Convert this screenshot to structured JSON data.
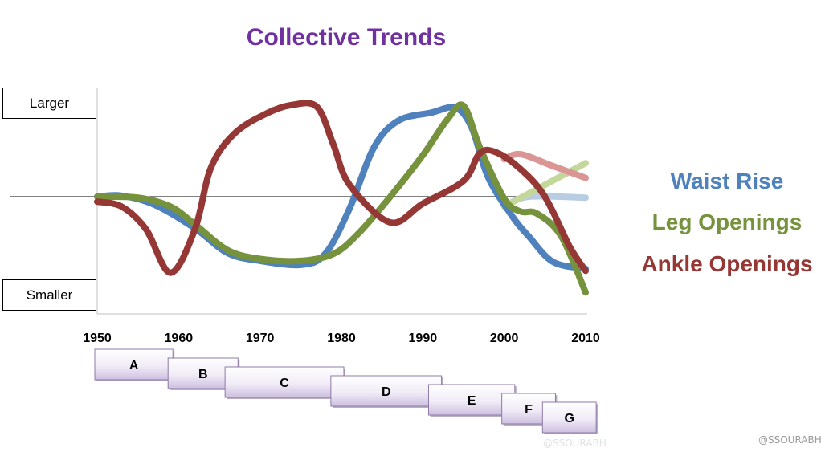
{
  "chart_data": {
    "type": "line",
    "title": "Collective Trends",
    "y_axis": {
      "top_label": "Larger",
      "bottom_label": "Smaller",
      "range": [
        -1,
        1
      ]
    },
    "x_axis": {
      "ticks": [
        "1950",
        "1960",
        "1970",
        "1980",
        "1990",
        "2000",
        "2010"
      ],
      "range": [
        1950,
        2010
      ]
    },
    "grid": false,
    "legend_position": "right",
    "series": [
      {
        "name": "Waist Rise",
        "color": "#4f81bd",
        "values": [
          [
            1950,
            0
          ],
          [
            1953,
            0.01
          ],
          [
            1957,
            -0.08
          ],
          [
            1962,
            -0.32
          ],
          [
            1966,
            -0.57
          ],
          [
            1970,
            -0.65
          ],
          [
            1975,
            -0.69
          ],
          [
            1978,
            -0.58
          ],
          [
            1981,
            -0.12
          ],
          [
            1984,
            0.5
          ],
          [
            1987,
            0.77
          ],
          [
            1991,
            0.85
          ],
          [
            1994,
            0.9
          ],
          [
            1996,
            0.7
          ],
          [
            1998,
            0.2
          ],
          [
            2001,
            -0.2
          ],
          [
            2003,
            -0.4
          ],
          [
            2006,
            -0.66
          ],
          [
            2010,
            -0.73
          ]
        ]
      },
      {
        "name": "Leg Openings",
        "color": "#76923c",
        "values": [
          [
            1950,
            0
          ],
          [
            1955,
            -0.01
          ],
          [
            1959,
            -0.1
          ],
          [
            1962,
            -0.28
          ],
          [
            1966,
            -0.54
          ],
          [
            1970,
            -0.63
          ],
          [
            1975,
            -0.65
          ],
          [
            1979,
            -0.58
          ],
          [
            1982,
            -0.38
          ],
          [
            1986,
            0
          ],
          [
            1990,
            0.42
          ],
          [
            1993,
            0.78
          ],
          [
            1995,
            0.92
          ],
          [
            1997,
            0.5
          ],
          [
            2000,
            -0.02
          ],
          [
            2002,
            -0.15
          ],
          [
            2004,
            -0.17
          ],
          [
            2007,
            -0.4
          ],
          [
            2010,
            -0.97
          ]
        ]
      },
      {
        "name": "Ankle Openings",
        "color": "#953735",
        "values": [
          [
            1950,
            -0.05
          ],
          [
            1953,
            -0.1
          ],
          [
            1956,
            -0.33
          ],
          [
            1959,
            -0.77
          ],
          [
            1962,
            -0.33
          ],
          [
            1964,
            0.3
          ],
          [
            1967,
            0.65
          ],
          [
            1971,
            0.85
          ],
          [
            1974,
            0.93
          ],
          [
            1977,
            0.91
          ],
          [
            1979,
            0.53
          ],
          [
            1981,
            0.12
          ],
          [
            1986,
            -0.26
          ],
          [
            1990,
            -0.07
          ],
          [
            1995,
            0.16
          ],
          [
            1997,
            0.44
          ],
          [
            1999,
            0.45
          ],
          [
            2002,
            0.28
          ],
          [
            2005,
            0
          ],
          [
            2008,
            -0.5
          ],
          [
            2010,
            -0.75
          ]
        ]
      }
    ],
    "projection_lines": [
      {
        "color": "#b8cce4",
        "values": [
          [
            2000,
            -0.1
          ],
          [
            2003,
            0
          ],
          [
            2010,
            -0.01
          ]
        ]
      },
      {
        "color": "#c4d79b",
        "values": [
          [
            2000,
            -0.1
          ],
          [
            2010,
            0.34
          ]
        ]
      },
      {
        "color": "#da9694",
        "values": [
          [
            2000,
            0.38
          ],
          [
            2002,
            0.43
          ],
          [
            2006,
            0.31
          ],
          [
            2010,
            0.19
          ]
        ]
      }
    ],
    "eras": [
      {
        "label": "A",
        "start": 1950,
        "end": 1959
      },
      {
        "label": "B",
        "start": 1959,
        "end": 1967
      },
      {
        "label": "C",
        "start": 1966,
        "end": 1980
      },
      {
        "label": "D",
        "start": 1979,
        "end": 1992
      },
      {
        "label": "E",
        "start": 1991,
        "end": 2001
      },
      {
        "label": "F",
        "start": 2000,
        "end": 2006
      },
      {
        "label": "G",
        "start": 2005,
        "end": 2011
      }
    ]
  },
  "watermark": "@SSOURABH"
}
